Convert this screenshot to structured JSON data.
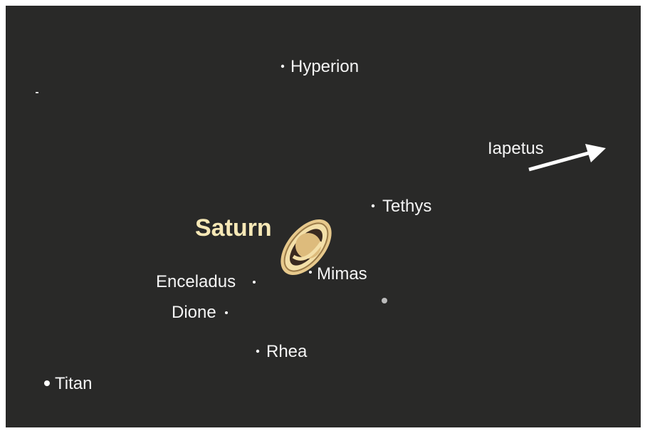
{
  "planet": "Saturn",
  "moons": {
    "hyperion": "Hyperion",
    "iapetus": "Iapetus",
    "tethys": "Tethys",
    "mimas": "Mimas",
    "enceladus": "Enceladus",
    "dione": "Dione",
    "rhea": "Rhea",
    "titan": "Titan"
  }
}
